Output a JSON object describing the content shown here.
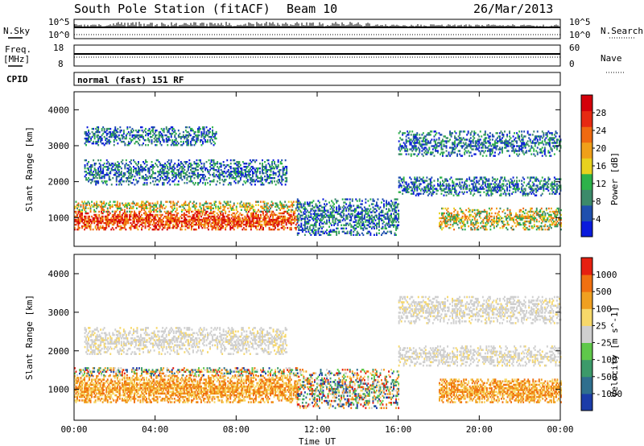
{
  "header": {
    "title": "South Pole Station (fitACF)",
    "beam": "Beam 10",
    "date": "26/Mar/2013"
  },
  "top_strips": {
    "nsky_label": "N.Sky",
    "nsearch_label": "N.Search",
    "noise_ticks_left": [
      "10^5",
      "10^0"
    ],
    "noise_ticks_right": [
      "10^5",
      "10^0"
    ],
    "freq_label_1": "Freq.",
    "freq_label_2": "[MHz]",
    "freq_ticks": [
      "18",
      "8"
    ],
    "nave_label": "Nave",
    "nave_ticks": [
      "60",
      "0"
    ],
    "cpid_label": "CPID",
    "cpid_value": "normal (fast) 151 RF"
  },
  "chart_data": [
    {
      "type": "heatmap",
      "name": "power",
      "ylabel": "Slant Range [km]",
      "ylim": [
        200,
        4500
      ],
      "yticks": [
        1000,
        2000,
        3000,
        4000
      ],
      "xlim_hours": [
        0,
        24
      ],
      "colorbar_label": "Power [dB]",
      "colorbar_ticks": [
        "28",
        "24",
        "20",
        "16",
        "12",
        "8",
        "4"
      ],
      "colorbar_colors": [
        "#0a1bdc",
        "#1f4fae",
        "#3c8a6a",
        "#2db24a",
        "#e8d21e",
        "#f0a01a",
        "#ef6a10",
        "#e62a12",
        "#d4000a"
      ],
      "bands": [
        {
          "t0": 0.0,
          "t1": 11.0,
          "r0": 650,
          "r1": 1150,
          "level": "high"
        },
        {
          "t0": 0.0,
          "t1": 11.2,
          "r0": 1150,
          "r1": 1450,
          "level": "mid"
        },
        {
          "t0": 0.5,
          "t1": 10.5,
          "r0": 1900,
          "r1": 2600,
          "level": "low"
        },
        {
          "t0": 0.5,
          "t1": 7.0,
          "r0": 3000,
          "r1": 3500,
          "level": "low"
        },
        {
          "t0": 11.0,
          "t1": 16.0,
          "r0": 500,
          "r1": 1500,
          "level": "low"
        },
        {
          "t0": 16.0,
          "t1": 24.0,
          "r0": 2700,
          "r1": 3400,
          "level": "low"
        },
        {
          "t0": 16.0,
          "t1": 24.0,
          "r0": 1600,
          "r1": 2100,
          "level": "low"
        },
        {
          "t0": 18.0,
          "t1": 24.0,
          "r0": 650,
          "r1": 1250,
          "level": "mid"
        }
      ]
    },
    {
      "type": "heatmap",
      "name": "velocity",
      "ylabel": "Slant Range [km]",
      "xlabel": "Time UT",
      "ylim": [
        200,
        4500
      ],
      "yticks": [
        1000,
        2000,
        3000,
        4000
      ],
      "xlim_hours": [
        0,
        24
      ],
      "xticks": [
        "00:00",
        "04:00",
        "08:00",
        "12:00",
        "16:00",
        "20:00",
        "00:00"
      ],
      "colorbar_label": "Velocity [m s^-1]",
      "colorbar_ticks": [
        "1000",
        "500",
        "100",
        "25",
        "-25",
        "-100",
        "-500",
        "-1000"
      ],
      "colorbar_colors": [
        "#1b3ca8",
        "#2f6f8e",
        "#3c9a6a",
        "#5fc84a",
        "#cfcfcf",
        "#f7d86a",
        "#f0a020",
        "#f07010",
        "#e62010"
      ],
      "bands": [
        {
          "t0": 0.0,
          "t1": 11.0,
          "r0": 650,
          "r1": 1350,
          "level": "neg"
        },
        {
          "t0": 0.0,
          "t1": 11.0,
          "r0": 1350,
          "r1": 1550,
          "level": "mixed"
        },
        {
          "t0": 0.5,
          "t1": 10.5,
          "r0": 1900,
          "r1": 2600,
          "level": "zero"
        },
        {
          "t0": 11.0,
          "t1": 16.0,
          "r0": 500,
          "r1": 1500,
          "level": "mixed"
        },
        {
          "t0": 16.0,
          "t1": 24.0,
          "r0": 2700,
          "r1": 3400,
          "level": "zero"
        },
        {
          "t0": 16.0,
          "t1": 24.0,
          "r0": 1600,
          "r1": 2100,
          "level": "zero"
        },
        {
          "t0": 18.0,
          "t1": 24.0,
          "r0": 650,
          "r1": 1250,
          "level": "neg"
        }
      ]
    }
  ]
}
